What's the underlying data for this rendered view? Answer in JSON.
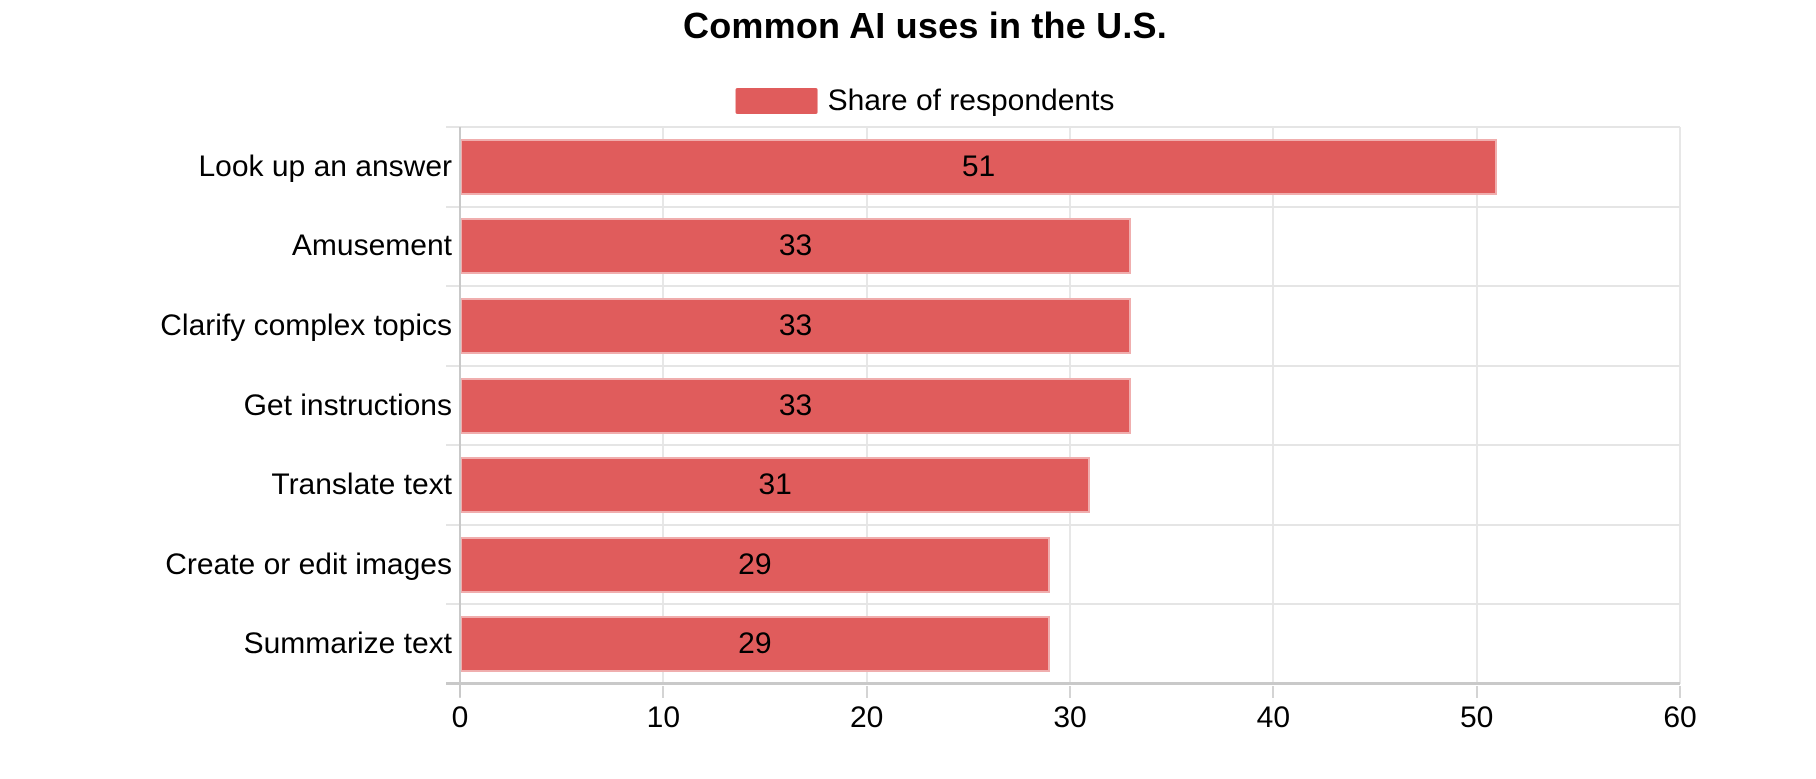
{
  "title": "Common AI uses in the U.S.",
  "legend": {
    "label": "Share of respondents"
  },
  "chart_data": {
    "type": "bar",
    "orientation": "horizontal",
    "title": "Common AI uses in the U.S.",
    "categories": [
      "Look up an answer",
      "Amusement",
      "Clarify complex topics",
      "Get instructions",
      "Translate text",
      "Create or edit images",
      "Summarize text"
    ],
    "series": [
      {
        "name": "Share of respondents",
        "values": [
          51,
          33,
          33,
          33,
          31,
          29,
          29
        ]
      }
    ],
    "x_ticks": [
      0,
      10,
      20,
      30,
      40,
      50,
      60
    ],
    "xlim": [
      0,
      60
    ],
    "xlabel": "",
    "ylabel": "",
    "grid": true,
    "legend_position": "top",
    "value_labels": "inside-center",
    "bar_color": "#e05c5c",
    "bar_border_color": "rgba(255,255,255,0.5)"
  }
}
